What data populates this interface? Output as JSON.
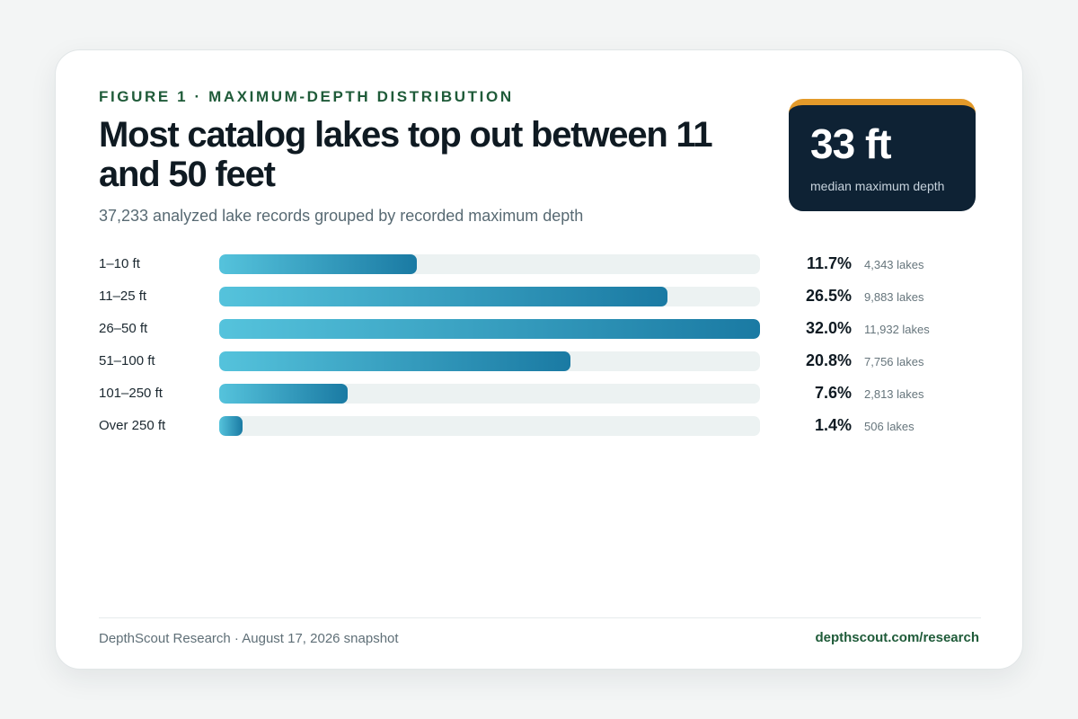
{
  "header": {
    "eyebrow": "FIGURE 1 · MAXIMUM-DEPTH DISTRIBUTION",
    "title": "Most catalog lakes top out between 11 and 50 feet",
    "subtitle": "37,233 analyzed lake records grouped by recorded maximum depth"
  },
  "stat": {
    "value": "33 ft",
    "label": "median maximum depth",
    "accent_color": "#e39a2a",
    "background_color": "#0e2234"
  },
  "chart_data": {
    "type": "bar",
    "orientation": "horizontal",
    "categories": [
      "1–10 ft",
      "11–25 ft",
      "26–50 ft",
      "51–100 ft",
      "101–250 ft",
      "Over 250 ft"
    ],
    "values": [
      11.7,
      26.5,
      32.0,
      20.8,
      7.6,
      1.4
    ],
    "value_labels": [
      "11.7%",
      "26.5%",
      "32.0%",
      "20.8%",
      "7.6%",
      "1.4%"
    ],
    "count_labels": [
      "4,343 lakes",
      "9,883 lakes",
      "11,932 lakes",
      "7,756 lakes",
      "2,813 lakes",
      "506 lakes"
    ],
    "xlim": [
      0,
      32.0
    ],
    "grid": false,
    "bar_gradient": [
      "#55c3dc",
      "#1a7aa3"
    ],
    "track_color": "#ecf2f2"
  },
  "footer": {
    "source": "DepthScout Research · August 17, 2026 snapshot",
    "link": "depthscout.com/research"
  }
}
